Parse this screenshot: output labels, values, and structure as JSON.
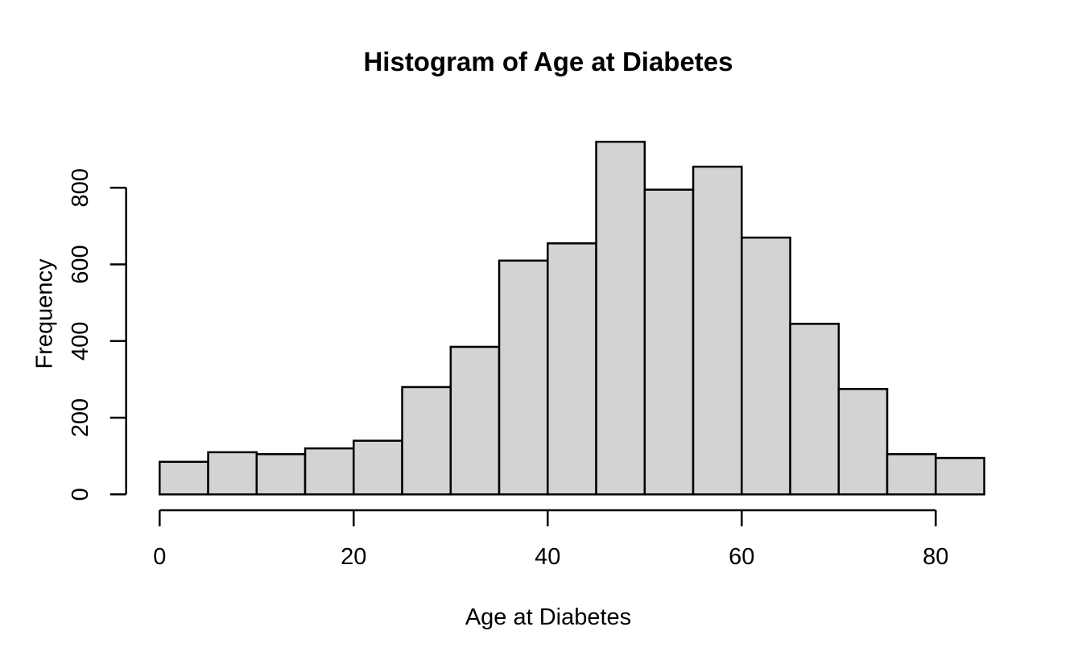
{
  "chart_data": {
    "type": "bar",
    "chart_kind": "histogram",
    "title": "Histogram of Age at Diabetes",
    "xlabel": "Age at Diabetes",
    "ylabel": "Frequency",
    "bin_width": 5,
    "bin_edges": [
      0,
      5,
      10,
      15,
      20,
      25,
      30,
      35,
      40,
      45,
      50,
      55,
      60,
      65,
      70,
      75,
      80,
      85
    ],
    "counts": [
      85,
      110,
      105,
      120,
      140,
      280,
      385,
      610,
      655,
      920,
      795,
      855,
      670,
      445,
      275,
      105,
      95
    ],
    "x_ticks": [
      0,
      20,
      40,
      60,
      80
    ],
    "x_tick_labels": [
      "0",
      "20",
      "40",
      "60",
      "80"
    ],
    "y_ticks": [
      0,
      200,
      400,
      600,
      800
    ],
    "y_tick_labels": [
      "0",
      "200",
      "400",
      "600",
      "800"
    ],
    "xlim": [
      0,
      85
    ],
    "ylim": [
      0,
      920
    ],
    "legend": "none",
    "grid": "off",
    "bar_fill": "#d3d3d3",
    "bar_stroke": "#000000",
    "axis_color": "#000000",
    "text_color": "#000000",
    "background": "#ffffff"
  }
}
